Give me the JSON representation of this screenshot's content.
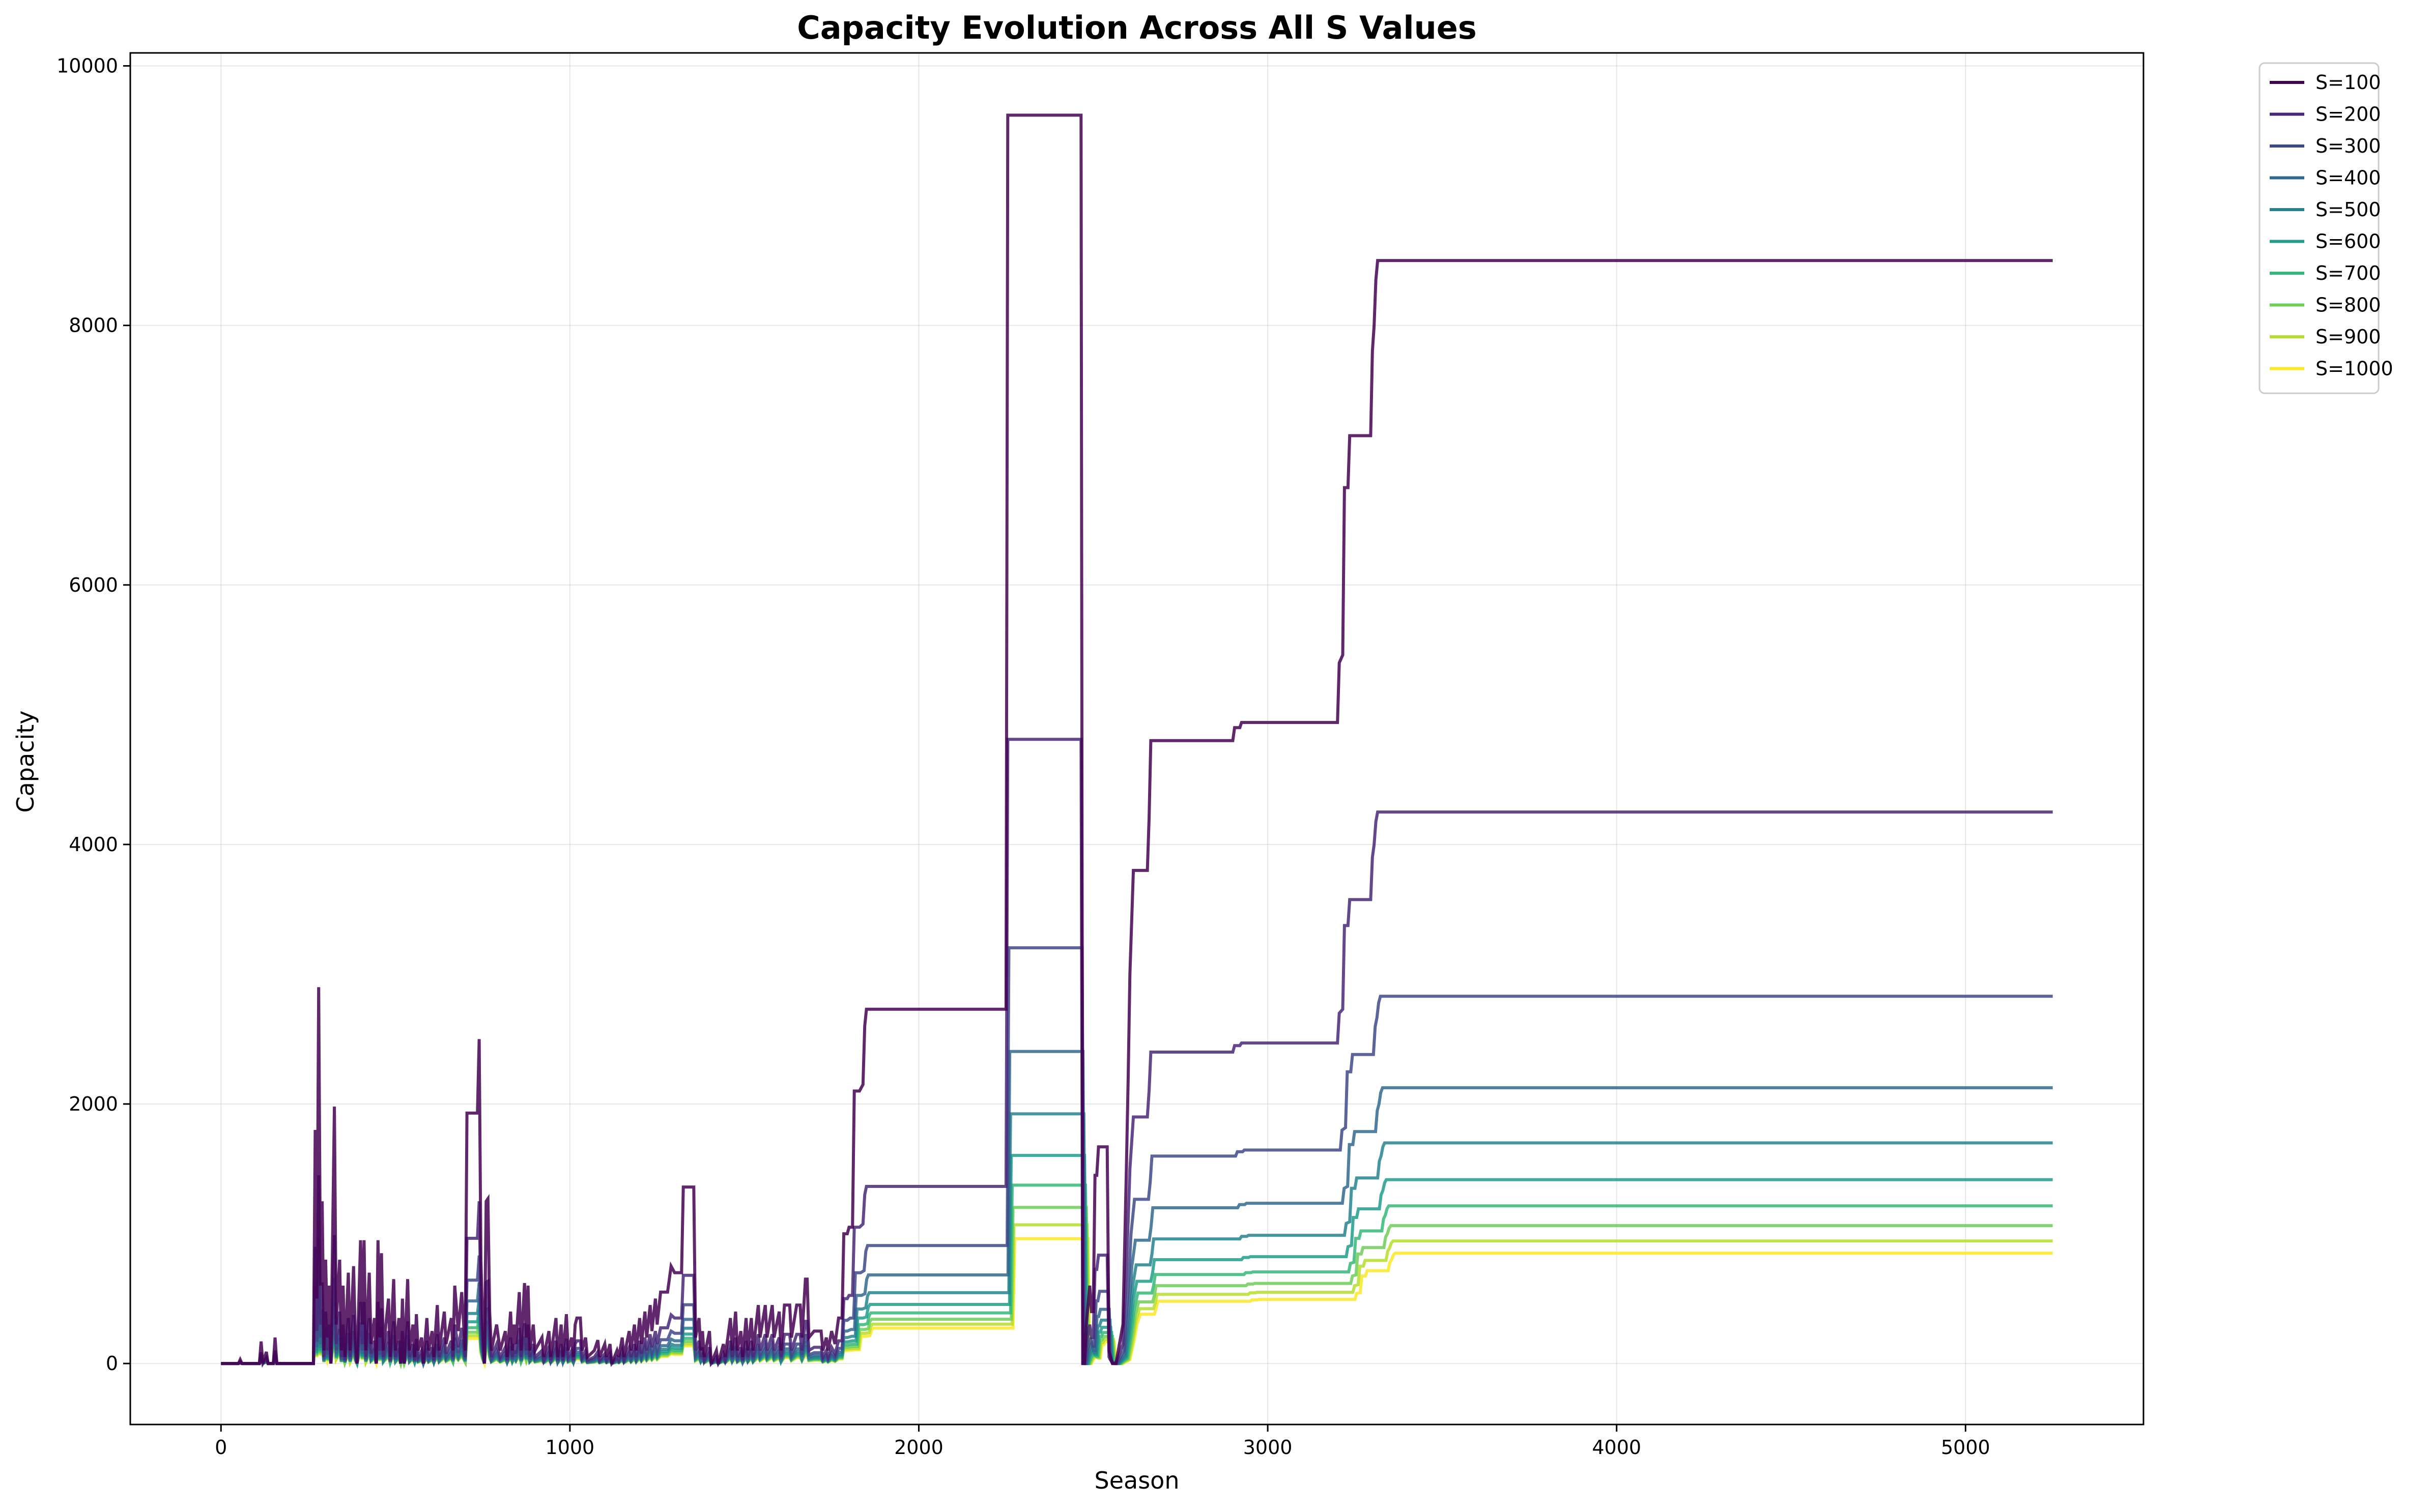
{
  "chart_data": {
    "type": "line",
    "title": "Capacity Evolution Across All S Values",
    "xlabel": "Season",
    "ylabel": "Capacity",
    "xlim": [
      -260,
      5510
    ],
    "ylim": [
      -470,
      10100
    ],
    "xticks": [
      0,
      1000,
      2000,
      3000,
      4000,
      5000
    ],
    "yticks": [
      0,
      2000,
      4000,
      6000,
      8000,
      10000
    ],
    "xtick_labels": [
      "0",
      "1000",
      "2000",
      "3000",
      "4000",
      "5000"
    ],
    "ytick_labels": [
      "0",
      "2000",
      "4000",
      "6000",
      "8000",
      "10000"
    ],
    "grid": true,
    "legend_position": "outside-top-right",
    "series": [
      {
        "name": "S=100",
        "color": "#440154",
        "scale": 1.0
      },
      {
        "name": "S=200",
        "color": "#482878",
        "scale": 0.5
      },
      {
        "name": "S=300",
        "color": "#3e4989",
        "scale": 0.333
      },
      {
        "name": "S=400",
        "color": "#31688e",
        "scale": 0.25
      },
      {
        "name": "S=500",
        "color": "#26828e",
        "scale": 0.2
      },
      {
        "name": "S=600",
        "color": "#1f9e89",
        "scale": 0.1667
      },
      {
        "name": "S=700",
        "color": "#35b779",
        "scale": 0.1429
      },
      {
        "name": "S=800",
        "color": "#6ece58",
        "scale": 0.125
      },
      {
        "name": "S=900",
        "color": "#b5de2b",
        "scale": 0.1111
      },
      {
        "name": "S=1000",
        "color": "#fde725",
        "scale": 0.1
      }
    ],
    "base_points": [
      [
        0,
        0
      ],
      [
        50,
        0
      ],
      [
        55,
        30
      ],
      [
        60,
        0
      ],
      [
        110,
        0
      ],
      [
        115,
        170
      ],
      [
        120,
        0
      ],
      [
        130,
        90
      ],
      [
        135,
        0
      ],
      [
        150,
        0
      ],
      [
        155,
        200
      ],
      [
        160,
        0
      ],
      [
        170,
        0
      ],
      [
        265,
        0
      ],
      [
        270,
        1800
      ],
      [
        275,
        500
      ],
      [
        280,
        2900
      ],
      [
        285,
        600
      ],
      [
        290,
        1250
      ],
      [
        295,
        100
      ],
      [
        300,
        800
      ],
      [
        305,
        200
      ],
      [
        310,
        600
      ],
      [
        315,
        0
      ],
      [
        325,
        1980
      ],
      [
        330,
        300
      ],
      [
        340,
        800
      ],
      [
        345,
        100
      ],
      [
        350,
        600
      ],
      [
        355,
        50
      ],
      [
        365,
        700
      ],
      [
        370,
        100
      ],
      [
        380,
        750
      ],
      [
        385,
        200
      ],
      [
        390,
        0
      ],
      [
        400,
        950
      ],
      [
        405,
        300
      ],
      [
        410,
        950
      ],
      [
        415,
        100
      ],
      [
        425,
        700
      ],
      [
        430,
        150
      ],
      [
        440,
        350
      ],
      [
        445,
        0
      ],
      [
        450,
        950
      ],
      [
        455,
        200
      ],
      [
        460,
        850
      ],
      [
        465,
        100
      ],
      [
        480,
        500
      ],
      [
        485,
        50
      ],
      [
        495,
        650
      ],
      [
        500,
        100
      ],
      [
        510,
        350
      ],
      [
        515,
        0
      ],
      [
        520,
        500
      ],
      [
        525,
        0
      ],
      [
        535,
        650
      ],
      [
        540,
        100
      ],
      [
        550,
        300
      ],
      [
        555,
        50
      ],
      [
        560,
        380
      ],
      [
        565,
        100
      ],
      [
        575,
        200
      ],
      [
        580,
        0
      ],
      [
        590,
        350
      ],
      [
        595,
        100
      ],
      [
        605,
        250
      ],
      [
        610,
        50
      ],
      [
        620,
        450
      ],
      [
        625,
        100
      ],
      [
        640,
        400
      ],
      [
        645,
        150
      ],
      [
        660,
        350
      ],
      [
        665,
        100
      ],
      [
        670,
        600
      ],
      [
        680,
        250
      ],
      [
        690,
        550
      ],
      [
        700,
        100
      ],
      [
        705,
        1930
      ],
      [
        735,
        1930
      ],
      [
        740,
        2500
      ],
      [
        745,
        800
      ],
      [
        750,
        300
      ],
      [
        755,
        0
      ],
      [
        760,
        1250
      ],
      [
        765,
        1270
      ],
      [
        770,
        400
      ],
      [
        775,
        100
      ],
      [
        790,
        300
      ],
      [
        800,
        100
      ],
      [
        815,
        250
      ],
      [
        820,
        50
      ],
      [
        830,
        400
      ],
      [
        835,
        100
      ],
      [
        840,
        300
      ],
      [
        845,
        150
      ],
      [
        855,
        550
      ],
      [
        860,
        100
      ],
      [
        870,
        620
      ],
      [
        875,
        200
      ],
      [
        880,
        600
      ],
      [
        885,
        100
      ],
      [
        895,
        300
      ],
      [
        900,
        100
      ],
      [
        920,
        200
      ],
      [
        925,
        50
      ],
      [
        940,
        250
      ],
      [
        945,
        50
      ],
      [
        960,
        350
      ],
      [
        965,
        50
      ],
      [
        975,
        300
      ],
      [
        980,
        50
      ],
      [
        990,
        380
      ],
      [
        995,
        100
      ],
      [
        1005,
        200
      ],
      [
        1010,
        50
      ],
      [
        1015,
        300
      ],
      [
        1020,
        350
      ],
      [
        1030,
        350
      ],
      [
        1035,
        100
      ],
      [
        1045,
        200
      ],
      [
        1050,
        50
      ],
      [
        1070,
        100
      ],
      [
        1080,
        180
      ],
      [
        1085,
        50
      ],
      [
        1100,
        150
      ],
      [
        1105,
        50
      ],
      [
        1115,
        150
      ],
      [
        1120,
        0
      ],
      [
        1135,
        100
      ],
      [
        1140,
        50
      ],
      [
        1150,
        200
      ],
      [
        1155,
        50
      ],
      [
        1170,
        250
      ],
      [
        1175,
        100
      ],
      [
        1185,
        300
      ],
      [
        1190,
        100
      ],
      [
        1200,
        350
      ],
      [
        1205,
        150
      ],
      [
        1215,
        400
      ],
      [
        1220,
        200
      ],
      [
        1230,
        450
      ],
      [
        1235,
        250
      ],
      [
        1245,
        500
      ],
      [
        1250,
        300
      ],
      [
        1260,
        550
      ],
      [
        1280,
        550
      ],
      [
        1290,
        750
      ],
      [
        1300,
        700
      ],
      [
        1320,
        700
      ],
      [
        1325,
        1360
      ],
      [
        1355,
        1360
      ],
      [
        1360,
        200
      ],
      [
        1370,
        350
      ],
      [
        1375,
        100
      ],
      [
        1380,
        250
      ],
      [
        1385,
        50
      ],
      [
        1400,
        250
      ],
      [
        1405,
        0
      ],
      [
        1420,
        100
      ],
      [
        1425,
        0
      ],
      [
        1440,
        150
      ],
      [
        1445,
        50
      ],
      [
        1460,
        350
      ],
      [
        1465,
        100
      ],
      [
        1475,
        400
      ],
      [
        1480,
        100
      ],
      [
        1490,
        250
      ],
      [
        1495,
        50
      ],
      [
        1505,
        350
      ],
      [
        1510,
        100
      ],
      [
        1520,
        350
      ],
      [
        1525,
        100
      ],
      [
        1540,
        450
      ],
      [
        1545,
        200
      ],
      [
        1560,
        450
      ],
      [
        1565,
        200
      ],
      [
        1580,
        450
      ],
      [
        1585,
        200
      ],
      [
        1600,
        400
      ],
      [
        1605,
        100
      ],
      [
        1615,
        450
      ],
      [
        1630,
        450
      ],
      [
        1635,
        200
      ],
      [
        1650,
        450
      ],
      [
        1660,
        450
      ],
      [
        1665,
        200
      ],
      [
        1675,
        650
      ],
      [
        1680,
        650
      ],
      [
        1685,
        200
      ],
      [
        1700,
        250
      ],
      [
        1720,
        250
      ],
      [
        1725,
        100
      ],
      [
        1735,
        200
      ],
      [
        1740,
        100
      ],
      [
        1750,
        250
      ],
      [
        1760,
        150
      ],
      [
        1770,
        350
      ],
      [
        1780,
        350
      ],
      [
        1785,
        1000
      ],
      [
        1795,
        1000
      ],
      [
        1800,
        1050
      ],
      [
        1810,
        1050
      ],
      [
        1815,
        2100
      ],
      [
        1830,
        2100
      ],
      [
        1840,
        2150
      ],
      [
        1845,
        2600
      ],
      [
        1850,
        2730
      ],
      [
        2230,
        2730
      ],
      [
        2250,
        2730
      ],
      [
        2255,
        9620
      ],
      [
        2465,
        9620
      ],
      [
        2470,
        0
      ],
      [
        2475,
        0
      ],
      [
        2480,
        300
      ],
      [
        2490,
        600
      ],
      [
        2495,
        400
      ],
      [
        2500,
        400
      ],
      [
        2505,
        1450
      ],
      [
        2510,
        1450
      ],
      [
        2515,
        1670
      ],
      [
        2540,
        1670
      ],
      [
        2545,
        100
      ],
      [
        2555,
        0
      ],
      [
        2565,
        0
      ],
      [
        2575,
        150
      ],
      [
        2585,
        300
      ],
      [
        2590,
        900
      ],
      [
        2595,
        1500
      ],
      [
        2600,
        2200
      ],
      [
        2605,
        3000
      ],
      [
        2610,
        3400
      ],
      [
        2615,
        3800
      ],
      [
        2655,
        3800
      ],
      [
        2660,
        4200
      ],
      [
        2665,
        4800
      ],
      [
        2900,
        4800
      ],
      [
        2905,
        4900
      ],
      [
        2920,
        4900
      ],
      [
        2925,
        4940
      ],
      [
        3200,
        4940
      ],
      [
        3205,
        5400
      ],
      [
        3215,
        5460
      ],
      [
        3220,
        6750
      ],
      [
        3230,
        6750
      ],
      [
        3235,
        7150
      ],
      [
        3295,
        7150
      ],
      [
        3300,
        7800
      ],
      [
        3305,
        8000
      ],
      [
        3310,
        8350
      ],
      [
        3315,
        8500
      ],
      [
        5250,
        8500
      ]
    ],
    "offsets": [
      0,
      0,
      8,
      14,
      20,
      25,
      32,
      38,
      44,
      50
    ]
  }
}
